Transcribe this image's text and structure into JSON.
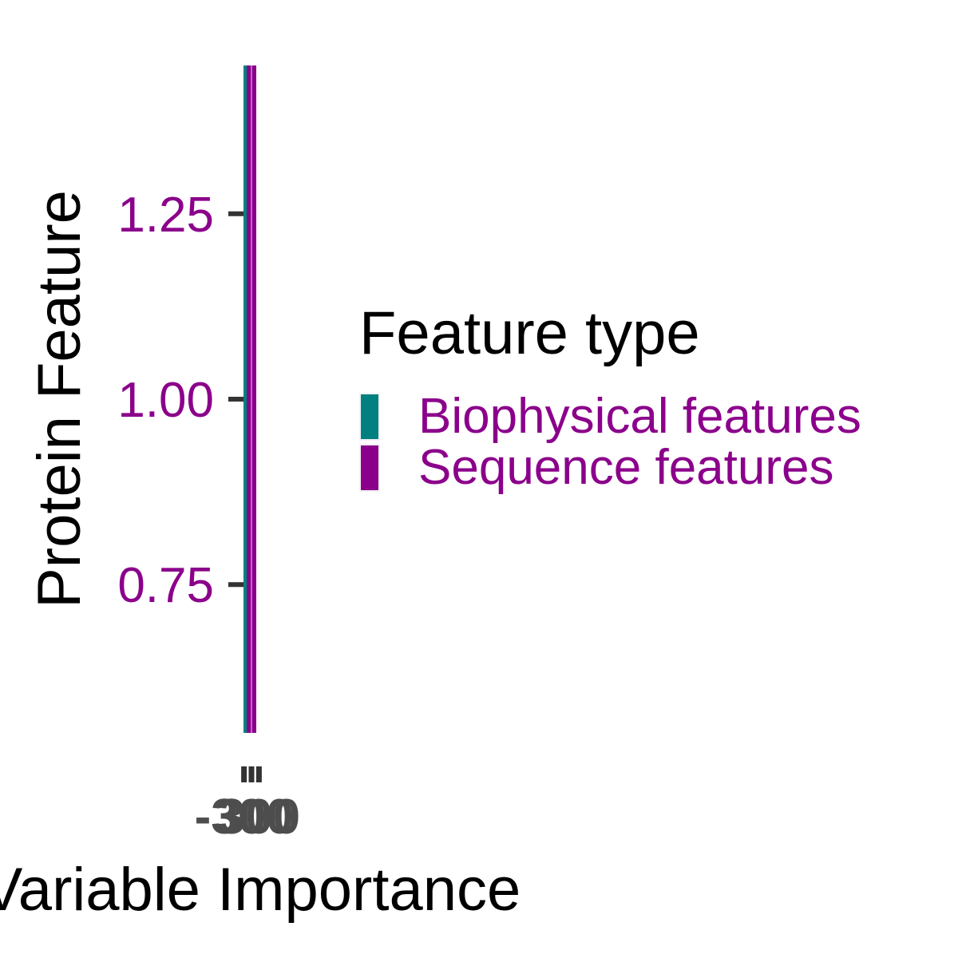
{
  "chart_data": {
    "type": "bar",
    "orientation": "horizontal",
    "title": "",
    "xlabel": "Variable Importance",
    "ylabel": "Protein Feature",
    "y_ticks": [
      "0.75",
      "1.00",
      "1.25"
    ],
    "y_tick_values": [
      0.75,
      1.0,
      1.25
    ],
    "ylim": [
      0.55,
      1.45
    ],
    "x_ticks": [
      "-300",
      "0",
      "300"
    ],
    "x_tick_values": [
      -300,
      0,
      300
    ],
    "xlim": [
      -320,
      320
    ],
    "legend": {
      "title": "Feature type",
      "position": "right",
      "items": [
        {
          "label": "Biophysical features",
          "color": "#008080"
        },
        {
          "label": "Sequence features",
          "color": "#8B008B"
        }
      ]
    },
    "series": [
      {
        "name": "Biophysical features",
        "color": "#008080",
        "y": 1.0,
        "value": 0
      },
      {
        "name": "Sequence features",
        "color": "#8B008B",
        "y": 1.0,
        "value": 0
      }
    ],
    "grid": false,
    "tick_label_color": "#8B008B",
    "x_tick_label_color": "#4d4d4d"
  }
}
